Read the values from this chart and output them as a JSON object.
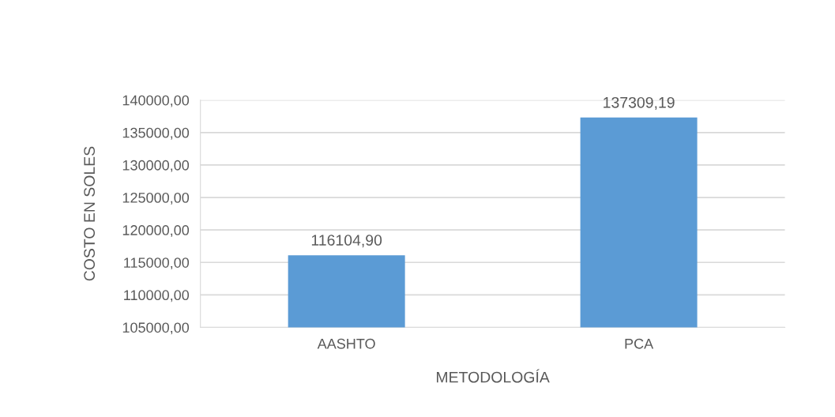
{
  "chart_data": {
    "type": "bar",
    "xlabel": "METODOLOGÍA",
    "ylabel": "COSTO EN SOLES",
    "categories": [
      "AASHTO",
      "PCA"
    ],
    "values": [
      116104.9,
      137309.19
    ],
    "color": "#5b9bd5",
    "value_labels": [
      "116104,90",
      "137309,19"
    ],
    "ylim": [
      105000,
      140000
    ],
    "yticks": [
      {
        "value": 105000,
        "label": "105000,00"
      },
      {
        "value": 110000,
        "label": "110000,00"
      },
      {
        "value": 115000,
        "label": "115000,00"
      },
      {
        "value": 120000,
        "label": "120000,00"
      },
      {
        "value": 125000,
        "label": "125000,00"
      },
      {
        "value": 130000,
        "label": "130000,00"
      },
      {
        "value": 135000,
        "label": "135000,00"
      },
      {
        "value": 140000,
        "label": "140000,00"
      }
    ],
    "grid": "y",
    "legend": false
  }
}
